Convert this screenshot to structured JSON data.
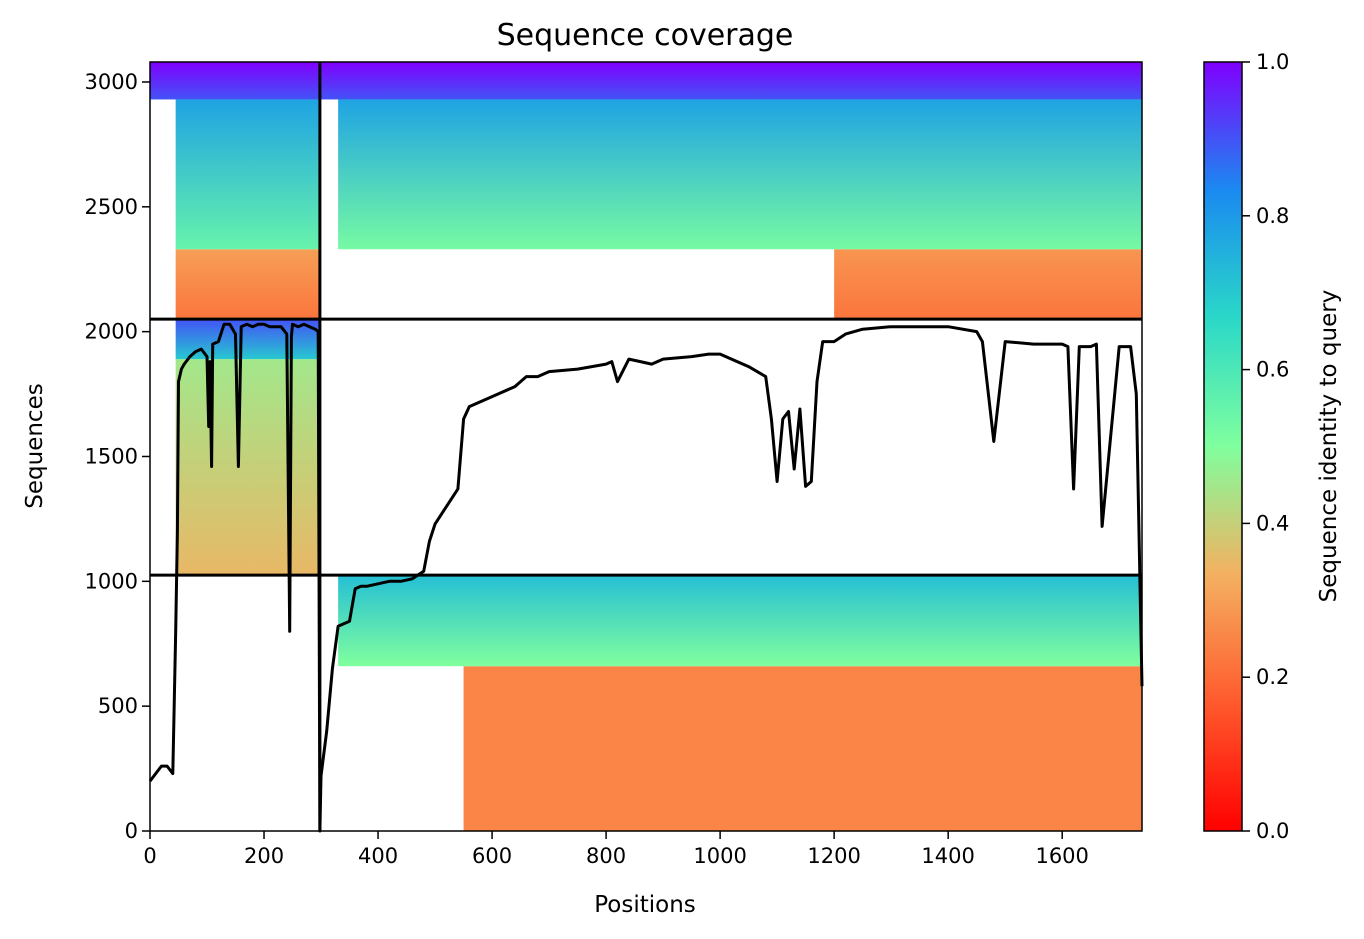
{
  "chart_data": {
    "type": "heatmap",
    "title": "Sequence coverage",
    "xlabel": "Positions",
    "ylabel": "Sequences",
    "xlim": [
      0,
      1740
    ],
    "ylim": [
      0,
      3080
    ],
    "xticks": [
      0,
      200,
      400,
      600,
      800,
      1000,
      1200,
      1400,
      1600
    ],
    "yticks": [
      0,
      500,
      1000,
      1500,
      2000,
      2500,
      3000
    ],
    "colorbar": {
      "label": "Sequence identity to query",
      "range": [
        0,
        1
      ],
      "ticks": [
        "0.0",
        "0.2",
        "0.4",
        "0.6",
        "0.8",
        "1.0"
      ],
      "colormap": "rainbow_r"
    },
    "dividers": {
      "vertical_at_position": 298,
      "horizontal_at_sequences": [
        1025,
        2050
      ]
    },
    "blocks": [
      {
        "x0": 45,
        "x1": 298,
        "y0": 1025,
        "y1": 1890,
        "identity_bottom": 0.35,
        "identity_top": 0.45
      },
      {
        "x0": 45,
        "x1": 298,
        "y0": 1890,
        "y1": 2050,
        "identity_bottom": 0.7,
        "identity_top": 0.9
      },
      {
        "x0": 45,
        "x1": 298,
        "y0": 2050,
        "y1": 2330,
        "identity_bottom": 0.22,
        "identity_top": 0.3
      },
      {
        "x0": 45,
        "x1": 298,
        "y0": 2330,
        "y1": 2930,
        "identity_bottom": 0.55,
        "identity_top": 0.78
      },
      {
        "x0": 0,
        "x1": 298,
        "y0": 2930,
        "y1": 3080,
        "identity_bottom": 0.9,
        "identity_top": 1.0
      },
      {
        "x0": 550,
        "x1": 1740,
        "y0": 0,
        "y1": 660,
        "identity_bottom": 0.25,
        "identity_top": 0.25
      },
      {
        "x0": 330,
        "x1": 1740,
        "y0": 660,
        "y1": 1025,
        "identity_bottom": 0.5,
        "identity_top": 0.72
      },
      {
        "x0": 1200,
        "x1": 1740,
        "y0": 2050,
        "y1": 2330,
        "identity_bottom": 0.22,
        "identity_top": 0.28
      },
      {
        "x0": 330,
        "x1": 1740,
        "y0": 2330,
        "y1": 2930,
        "identity_bottom": 0.52,
        "identity_top": 0.78
      },
      {
        "x0": 298,
        "x1": 1740,
        "y0": 2930,
        "y1": 3080,
        "identity_bottom": 0.9,
        "identity_top": 1.0
      }
    ],
    "coverage_line": {
      "x": [
        0,
        10,
        20,
        30,
        40,
        45,
        48,
        50,
        55,
        60,
        70,
        80,
        90,
        100,
        103,
        105,
        108,
        110,
        120,
        130,
        140,
        150,
        155,
        160,
        170,
        180,
        190,
        200,
        210,
        220,
        230,
        240,
        245,
        248,
        250,
        260,
        270,
        280,
        290,
        295,
        298,
        300,
        310,
        320,
        330,
        340,
        350,
        360,
        370,
        380,
        400,
        420,
        440,
        460,
        480,
        490,
        500,
        520,
        540,
        550,
        560,
        580,
        600,
        640,
        660,
        680,
        700,
        750,
        800,
        810,
        820,
        840,
        860,
        880,
        900,
        950,
        980,
        1000,
        1050,
        1080,
        1090,
        1100,
        1110,
        1120,
        1130,
        1140,
        1150,
        1160,
        1170,
        1180,
        1200,
        1220,
        1250,
        1300,
        1400,
        1450,
        1460,
        1480,
        1500,
        1550,
        1600,
        1610,
        1620,
        1630,
        1650,
        1660,
        1670,
        1700,
        1720,
        1730,
        1740
      ],
      "y": [
        200,
        230,
        260,
        260,
        230,
        800,
        1200,
        1800,
        1850,
        1870,
        1900,
        1920,
        1930,
        1900,
        1620,
        1880,
        1460,
        1950,
        1960,
        2030,
        2030,
        1990,
        1460,
        2020,
        2030,
        2020,
        2030,
        2030,
        2020,
        2020,
        2020,
        1990,
        800,
        1980,
        2030,
        2020,
        2030,
        2020,
        2010,
        2000,
        0,
        220,
        400,
        650,
        820,
        830,
        840,
        970,
        980,
        980,
        990,
        1000,
        1000,
        1010,
        1040,
        1160,
        1230,
        1300,
        1370,
        1650,
        1700,
        1720,
        1740,
        1780,
        1820,
        1820,
        1840,
        1850,
        1870,
        1880,
        1800,
        1890,
        1880,
        1870,
        1890,
        1900,
        1910,
        1910,
        1860,
        1820,
        1650,
        1400,
        1650,
        1680,
        1450,
        1690,
        1380,
        1400,
        1800,
        1960,
        1960,
        1990,
        2010,
        2020,
        2020,
        2000,
        1960,
        1560,
        1960,
        1950,
        1950,
        1940,
        1370,
        1940,
        1940,
        1950,
        1220,
        1940,
        1940,
        1750,
        580
      ]
    }
  }
}
